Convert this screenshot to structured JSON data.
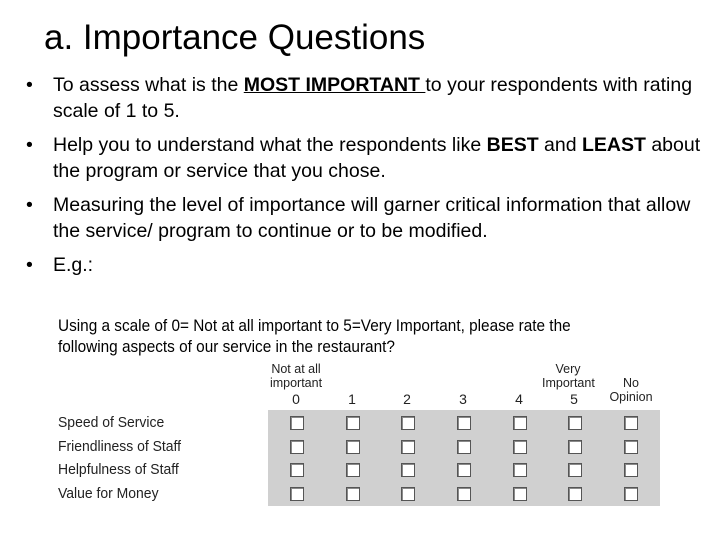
{
  "title": "a. Importance Questions",
  "bullets": [
    {
      "before": "To assess what is the ",
      "emphasis": "MOST IMPORTANT ",
      "after": "to your respondents with rating scale of 1 to 5."
    },
    {
      "before": "Help you to understand what the respondents like ",
      "emphasis1": "BEST",
      "middle": " and ",
      "emphasis2": "LEAST",
      "after": " about the program or service that you chose."
    },
    {
      "text": "Measuring the level of importance will garner critical information that allow the service/ program to continue or to be modified."
    },
    {
      "text": "E.g.:"
    }
  ],
  "bullet_glyph": "•",
  "survey": {
    "question_line1": "Using a scale of 0= Not at all important to 5=Very Important, please rate the",
    "question_line2": "following aspects of our service in the restaurant?",
    "label_low_1": "Not at all",
    "label_low_2": "important",
    "label_high_1": "Very",
    "label_high_2": "Important",
    "label_noop_1": "No",
    "label_noop_2": "Opinion",
    "scale": [
      "0",
      "1",
      "2",
      "3",
      "4",
      "5"
    ],
    "items": [
      "Speed of Service",
      "Friendliness of Staff",
      "Helpfulness of Staff",
      "Value for Money"
    ]
  }
}
